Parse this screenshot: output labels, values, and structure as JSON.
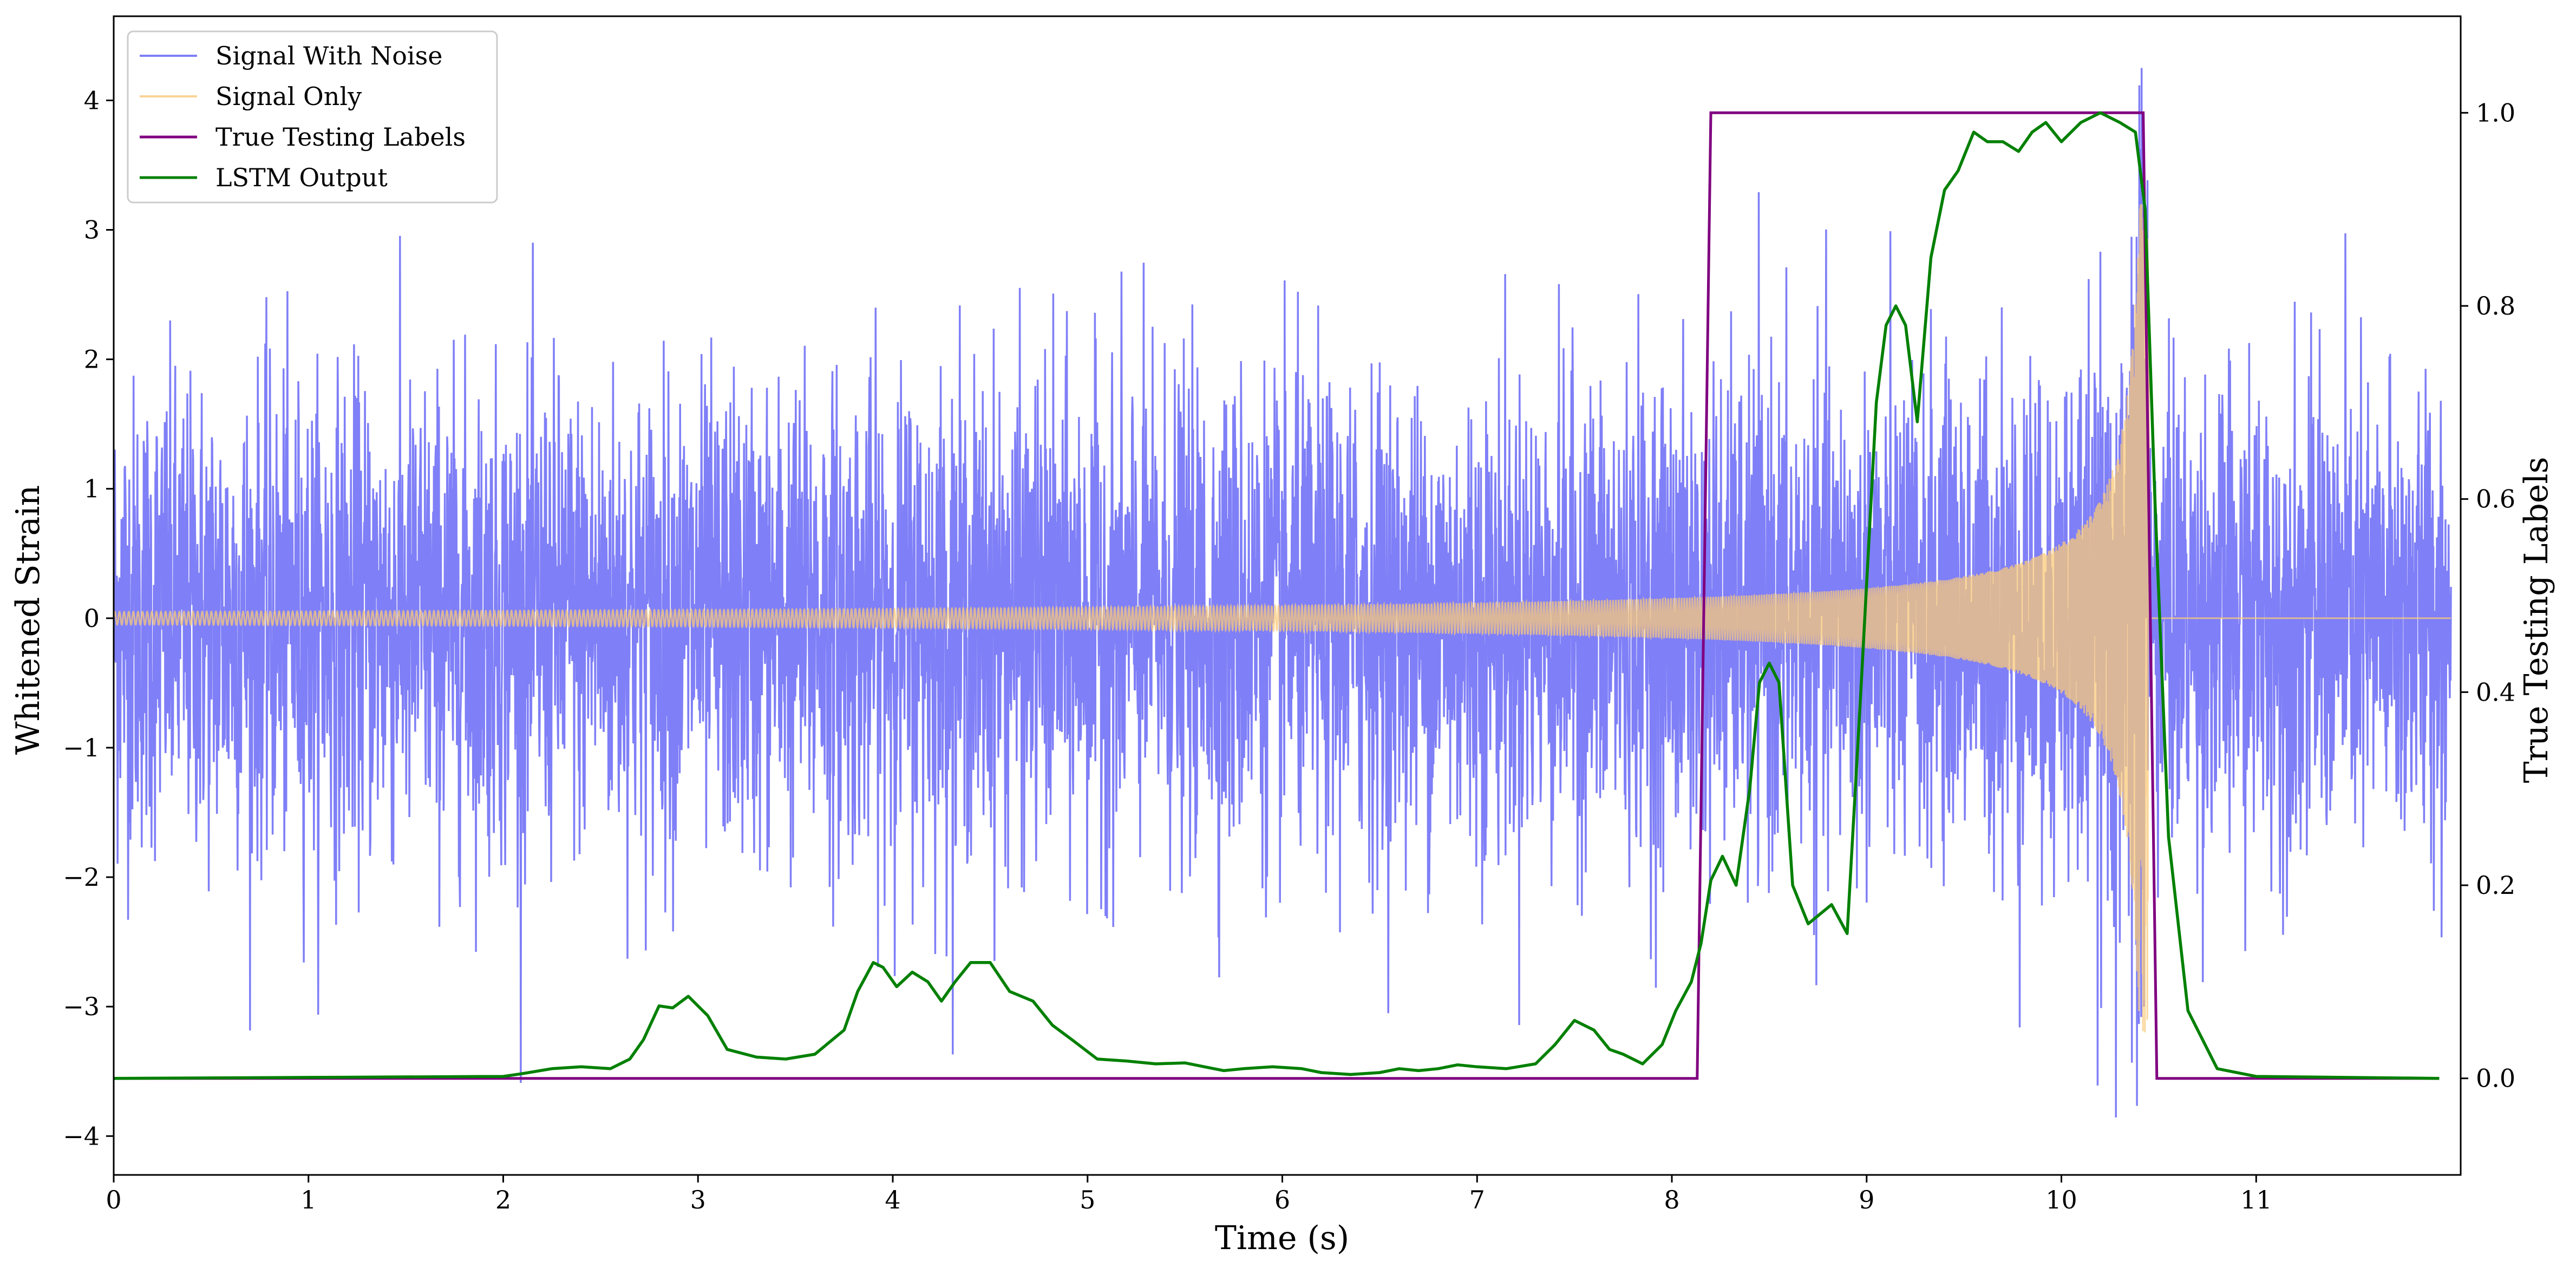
{
  "chart_data": {
    "type": "line",
    "xlabel": "Time (s)",
    "ylabel_left": "Whitened Strain",
    "ylabel_right": "True Testing Labels",
    "xlim": [
      0,
      12.05
    ],
    "ylim_left": [
      -4.3,
      4.65
    ],
    "ylim_right": [
      -0.1,
      1.1
    ],
    "x_ticks": [
      0,
      1,
      2,
      3,
      4,
      5,
      6,
      7,
      8,
      9,
      10,
      11
    ],
    "x_tick_labels": [
      "0",
      "1",
      "2",
      "3",
      "4",
      "5",
      "6",
      "7",
      "8",
      "9",
      "10",
      "11"
    ],
    "y_left_ticks": [
      4,
      3,
      2,
      1,
      0,
      -1,
      -2,
      -3,
      -4
    ],
    "y_left_tick_labels": [
      "4",
      "3",
      "2",
      "1",
      "0",
      "−1",
      "−2",
      "−3",
      "−4"
    ],
    "y_right_ticks": [
      1.0,
      0.8,
      0.6,
      0.4,
      0.2,
      0.0
    ],
    "y_right_tick_labels": [
      "1.0",
      "0.8",
      "0.6",
      "0.4",
      "0.2",
      "0.0"
    ],
    "grid": false,
    "legend_position": "top-left",
    "series": [
      {
        "name": "Signal With Noise",
        "axis": "left",
        "color": "#7f7ff7",
        "noise_sigma": 0.9,
        "noise_range": [
          -3.9,
          4.25
        ]
      },
      {
        "name": "Signal Only",
        "axis": "left",
        "color": "#f9c97a",
        "chirp_end": 10.45,
        "peak_amplitude": 3.2
      },
      {
        "name": "True Testing Labels",
        "axis": "right",
        "color": "#800080",
        "x": [
          0,
          8.13,
          8.2,
          10.42,
          10.49,
          11.94
        ],
        "y": [
          0,
          0,
          1,
          1,
          0,
          0
        ]
      },
      {
        "name": "LSTM Output",
        "axis": "right",
        "color": "#008000",
        "x": [
          0,
          1.0,
          2.0,
          2.1,
          2.25,
          2.4,
          2.55,
          2.65,
          2.72,
          2.8,
          2.87,
          2.95,
          3.05,
          3.15,
          3.3,
          3.45,
          3.6,
          3.75,
          3.82,
          3.9,
          3.95,
          4.02,
          4.1,
          4.18,
          4.25,
          4.32,
          4.4,
          4.5,
          4.6,
          4.72,
          4.82,
          4.92,
          5.05,
          5.2,
          5.35,
          5.5,
          5.6,
          5.7,
          5.8,
          5.95,
          6.1,
          6.2,
          6.35,
          6.5,
          6.6,
          6.7,
          6.8,
          6.9,
          7.0,
          7.15,
          7.3,
          7.4,
          7.5,
          7.6,
          7.68,
          7.75,
          7.85,
          7.95,
          8.02,
          8.1,
          8.15,
          8.2,
          8.26,
          8.33,
          8.4,
          8.45,
          8.5,
          8.55,
          8.62,
          8.7,
          8.82,
          8.9,
          8.97,
          9.05,
          9.1,
          9.15,
          9.2,
          9.26,
          9.33,
          9.4,
          9.47,
          9.55,
          9.62,
          9.7,
          9.78,
          9.85,
          9.92,
          10.0,
          10.1,
          10.2,
          10.3,
          10.38,
          10.43,
          10.48,
          10.55,
          10.65,
          10.8,
          11.0,
          11.94
        ],
        "y": [
          0,
          0.001,
          0.002,
          0.005,
          0.01,
          0.012,
          0.01,
          0.02,
          0.04,
          0.075,
          0.073,
          0.085,
          0.065,
          0.03,
          0.022,
          0.02,
          0.025,
          0.05,
          0.09,
          0.12,
          0.115,
          0.095,
          0.11,
          0.1,
          0.08,
          0.1,
          0.12,
          0.12,
          0.09,
          0.08,
          0.055,
          0.04,
          0.02,
          0.018,
          0.015,
          0.016,
          0.012,
          0.008,
          0.01,
          0.012,
          0.01,
          0.006,
          0.004,
          0.006,
          0.01,
          0.008,
          0.01,
          0.014,
          0.012,
          0.01,
          0.015,
          0.035,
          0.06,
          0.05,
          0.03,
          0.025,
          0.015,
          0.035,
          0.07,
          0.1,
          0.14,
          0.205,
          0.23,
          0.2,
          0.3,
          0.41,
          0.43,
          0.41,
          0.2,
          0.16,
          0.18,
          0.15,
          0.4,
          0.7,
          0.78,
          0.8,
          0.78,
          0.68,
          0.85,
          0.92,
          0.94,
          0.98,
          0.97,
          0.97,
          0.96,
          0.98,
          0.99,
          0.97,
          0.99,
          1.0,
          0.99,
          0.98,
          0.9,
          0.6,
          0.25,
          0.07,
          0.01,
          0.002,
          0
        ]
      }
    ]
  }
}
